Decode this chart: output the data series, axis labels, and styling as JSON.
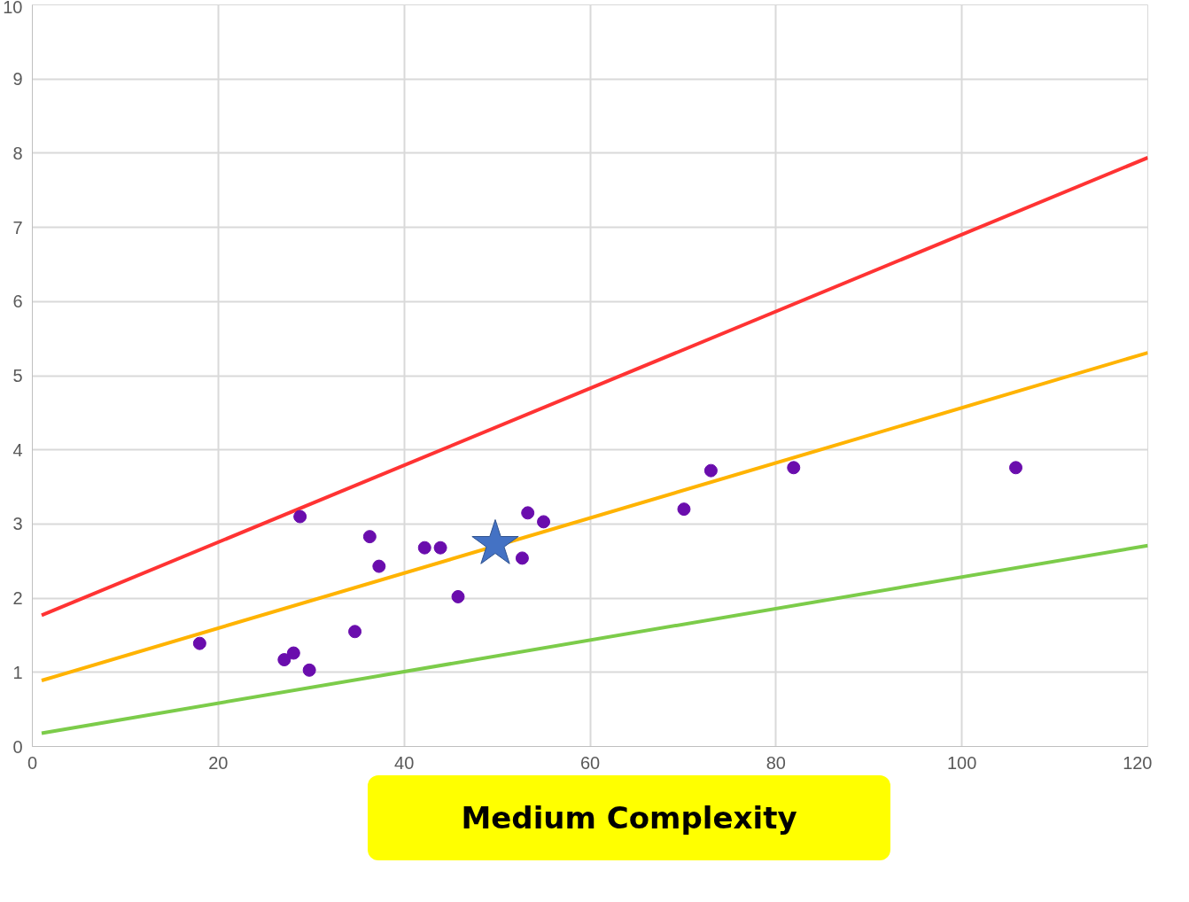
{
  "chart_data": {
    "type": "scatter",
    "xlim": [
      0,
      120
    ],
    "ylim": [
      0,
      10
    ],
    "xticks": [
      0,
      20,
      40,
      60,
      80,
      100,
      120
    ],
    "yticks": [
      0,
      1,
      2,
      3,
      4,
      5,
      6,
      7,
      8,
      9,
      10
    ],
    "grid": true,
    "series": [
      {
        "type": "line",
        "color": "#ff3333",
        "marker": "none",
        "x": [
          1,
          120
        ],
        "values": [
          1.77,
          7.94
        ]
      },
      {
        "type": "line",
        "color": "#ffb300",
        "marker": "none",
        "x": [
          1,
          120
        ],
        "values": [
          0.89,
          5.31
        ]
      },
      {
        "type": "line",
        "color": "#7ccc4a",
        "marker": "none",
        "x": [
          1,
          120
        ],
        "values": [
          0.18,
          2.71
        ]
      },
      {
        "color": "#6a0dad",
        "marker": "circle",
        "x": [
          18.0,
          27.1,
          28.1,
          28.8,
          29.8,
          34.7,
          36.3,
          37.3,
          42.2,
          43.9,
          45.8,
          52.7,
          53.3,
          55.0,
          70.1,
          73.0,
          81.9,
          105.8
        ],
        "values": [
          1.39,
          1.17,
          1.26,
          3.1,
          1.03,
          1.55,
          2.83,
          2.43,
          2.68,
          2.68,
          2.02,
          2.54,
          3.15,
          3.03,
          3.2,
          3.72,
          3.76,
          3.76
        ]
      },
      {
        "type": "scatter",
        "color": "#4472c4",
        "marker": "star",
        "x": [
          49.8
        ],
        "values": [
          2.73
        ]
      }
    ],
    "annotations": [
      "Medium Complexity"
    ]
  }
}
